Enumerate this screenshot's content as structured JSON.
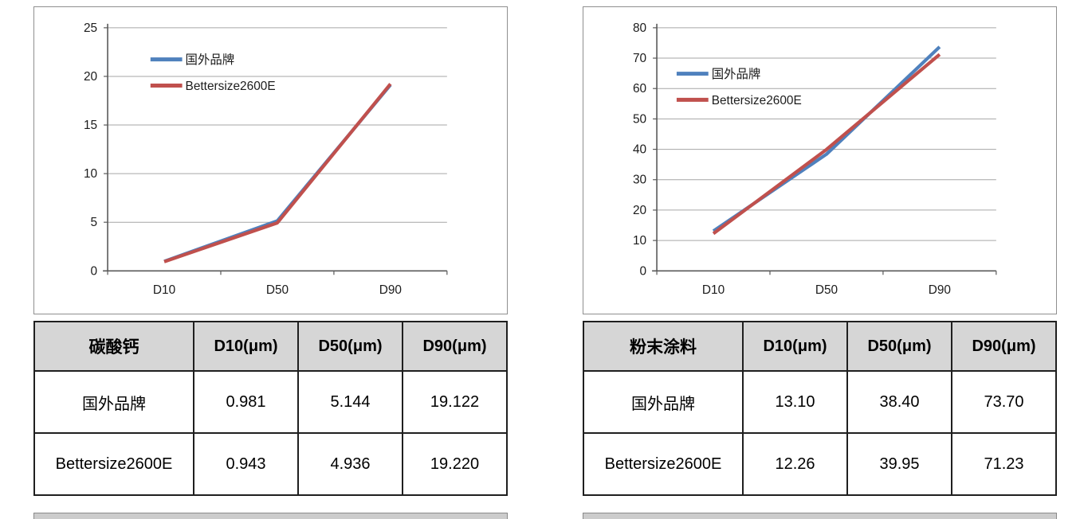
{
  "chart_data": [
    {
      "type": "line",
      "title": "",
      "xlabel": "",
      "ylabel": "",
      "categories": [
        "D10",
        "D50",
        "D90"
      ],
      "series": [
        {
          "name": "国外品牌",
          "color": "#4f81bd",
          "values": [
            0.981,
            5.144,
            19.122
          ]
        },
        {
          "name": "Bettersize2600E",
          "color": "#c0504d",
          "values": [
            0.943,
            4.936,
            19.22
          ]
        }
      ],
      "ylim": [
        0,
        25
      ],
      "ytick": 5,
      "grid": true,
      "legend_position": "inside-top-left"
    },
    {
      "type": "line",
      "title": "",
      "xlabel": "",
      "ylabel": "",
      "categories": [
        "D10",
        "D50",
        "D90"
      ],
      "series": [
        {
          "name": "国外品牌",
          "color": "#4f81bd",
          "values": [
            13.1,
            38.4,
            73.7
          ]
        },
        {
          "name": "Bettersize2600E",
          "color": "#c0504d",
          "values": [
            12.26,
            39.95,
            71.23
          ]
        }
      ],
      "ylim": [
        0,
        80
      ],
      "ytick": 10,
      "grid": true,
      "legend_position": "inside-top-left"
    }
  ],
  "tables": [
    {
      "headers": [
        "碳酸钙",
        "D10(μm)",
        "D50(μm)",
        "D90(μm)"
      ],
      "rows": [
        {
          "label": "国外品牌",
          "cells": [
            "0.981",
            "5.144",
            "19.122"
          ]
        },
        {
          "label": "Bettersize2600E",
          "cells": [
            "0.943",
            "4.936",
            "19.220"
          ]
        }
      ]
    },
    {
      "headers": [
        "粉末涂料",
        "D10(μm)",
        "D50(μm)",
        "D90(μm)"
      ],
      "rows": [
        {
          "label": "国外品牌",
          "cells": [
            "13.10",
            "38.40",
            "73.70"
          ]
        },
        {
          "label": "Bettersize2600E",
          "cells": [
            "12.26",
            "39.95",
            "71.23"
          ]
        }
      ]
    }
  ],
  "colors": {
    "series_blue": "#4f81bd",
    "series_red": "#c0504d",
    "gridline": "#a6a6a6",
    "axis": "#595959",
    "table_header_bg": "#d6d6d6",
    "table_border": "#1f1f1f"
  }
}
